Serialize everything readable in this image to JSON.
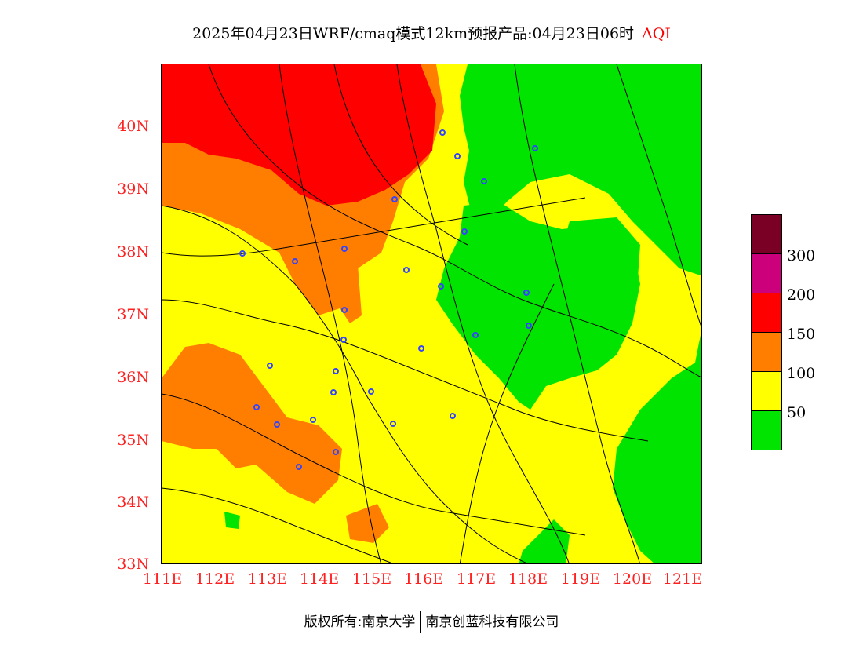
{
  "title": {
    "main": "2025年04月23日WRF/cmaq模式12km预报产品:04月23日06时",
    "variable": "AQI"
  },
  "y_ticks": [
    "40N",
    "39N",
    "38N",
    "37N",
    "36N",
    "35N",
    "34N",
    "33N"
  ],
  "x_ticks": [
    "111E",
    "112E",
    "113E",
    "114E",
    "115E",
    "116E",
    "117E",
    "118E",
    "119E",
    "120E",
    "121E"
  ],
  "legend": {
    "colors": [
      "#7a0025",
      "#cc007a",
      "#ff0000",
      "#ff7e00",
      "#ffff00",
      "#00e400"
    ],
    "labels": [
      "300",
      "200",
      "150",
      "100",
      "50"
    ]
  },
  "footer": {
    "left": "版权所有:南京大学",
    "right": "南京创蓝科技有限公司"
  },
  "colors": {
    "good": "#00e400",
    "moderate": "#ffff00",
    "unhealthy_sensitive": "#ff7e00",
    "unhealthy": "#ff0000",
    "tick_label": "#ff2020",
    "station_marker": "#3344ff"
  }
}
